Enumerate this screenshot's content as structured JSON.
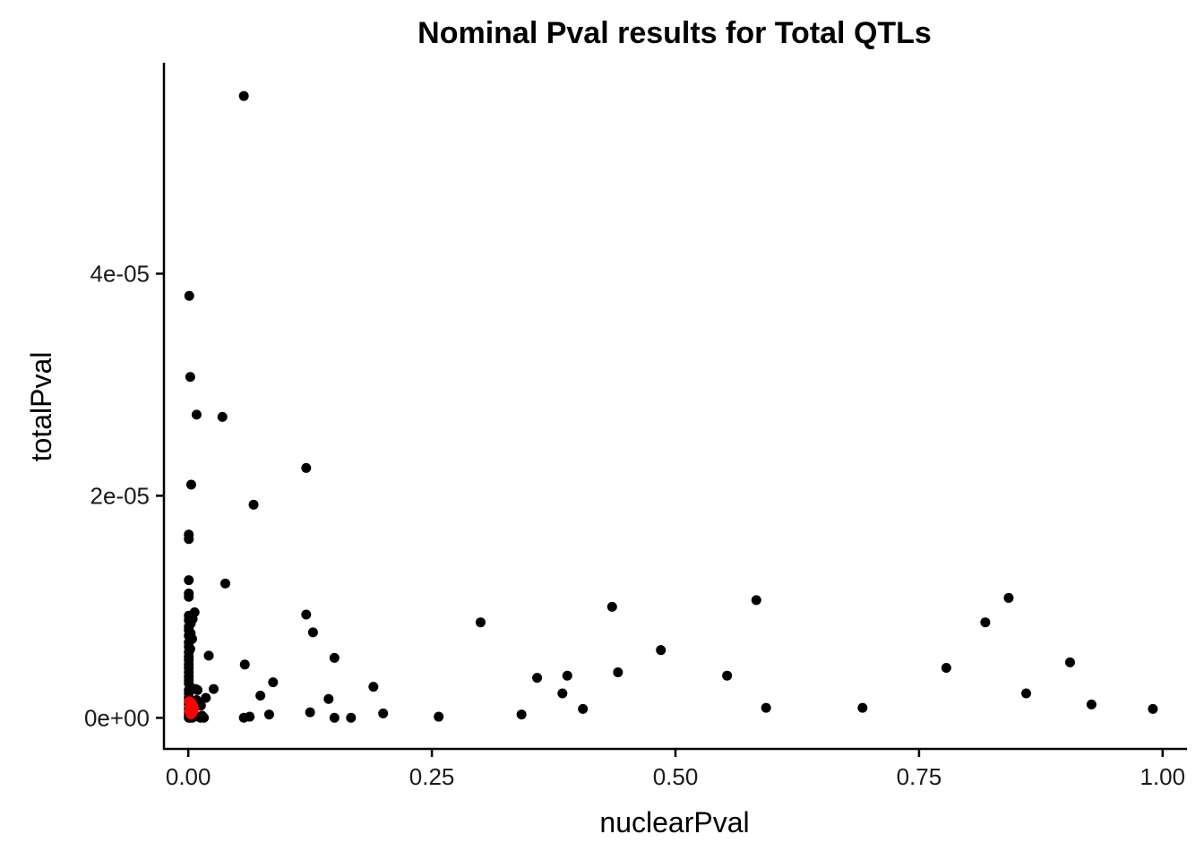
{
  "chart_data": {
    "type": "scatter",
    "title": "Nominal Pval results for Total QTLs",
    "xlabel": "nuclearPval",
    "ylabel": "totalPval",
    "xlim": [
      -0.025,
      1.025
    ],
    "ylim": [
      -2.8e-06,
      5.9e-05
    ],
    "x_ticks": [
      0,
      0.25,
      0.5,
      0.75,
      1
    ],
    "x_tick_labels": [
      "0.00",
      "0.25",
      "0.50",
      "0.75",
      "1.00"
    ],
    "y_ticks": [
      0,
      2e-05,
      4e-05
    ],
    "y_tick_labels": [
      "0e+00",
      "2e-05",
      "4e-05"
    ],
    "grid": false,
    "legend": "none",
    "series": [
      {
        "color": "#000000",
        "points": [
          [
            0.057,
            5.6e-05
          ],
          [
            0.001,
            3.8e-05
          ],
          [
            0.002,
            3.07e-05
          ],
          [
            0.0085,
            2.73e-05
          ],
          [
            0.035,
            2.71e-05
          ],
          [
            0.003,
            2.1e-05
          ],
          [
            0.067,
            1.92e-05
          ],
          [
            0.121,
            2.25e-05
          ],
          [
            0.0005,
            1.65e-05
          ],
          [
            0.0005,
            1.61e-05
          ],
          [
            0.0005,
            1.24e-05
          ],
          [
            0.038,
            1.21e-05
          ],
          [
            0.0005,
            1.12e-05
          ],
          [
            0.0005,
            1.09e-05
          ],
          [
            0.0065,
            9.5e-06
          ],
          [
            0.0005,
            9.2e-06
          ],
          [
            0.0045,
            8.9e-06
          ],
          [
            0.0005,
            8.8e-06
          ],
          [
            0.0025,
            8.5e-06
          ],
          [
            0.0005,
            8.2e-06
          ],
          [
            0.0005,
            7.9e-06
          ],
          [
            0.0025,
            7.6e-06
          ],
          [
            0.0005,
            7.4e-06
          ],
          [
            0.004,
            7.1e-06
          ],
          [
            0.0005,
            6.8e-06
          ],
          [
            0.0005,
            6.4e-06
          ],
          [
            0.002,
            6.2e-06
          ],
          [
            0.0005,
            5.9e-06
          ],
          [
            0.0005,
            5.5e-06
          ],
          [
            0.0005,
            5.2e-06
          ],
          [
            0.0005,
            4.8e-06
          ],
          [
            0.0005,
            4.5e-06
          ],
          [
            0.0005,
            4.1e-06
          ],
          [
            0.0005,
            3.7e-06
          ],
          [
            0.0005,
            3.4e-06
          ],
          [
            0.0005,
            3.1e-06
          ],
          [
            0.002,
            2.8e-06
          ],
          [
            0.0005,
            2.5e-06
          ],
          [
            0.0005,
            2.2e-06
          ],
          [
            0.0005,
            1.8e-06
          ],
          [
            0.0005,
            1.5e-06
          ],
          [
            0.0005,
            1.2e-06
          ],
          [
            0.0005,
            8e-07
          ],
          [
            0.0005,
            5e-07
          ],
          [
            0.0005,
            2e-07
          ],
          [
            0.0005,
            0.0
          ],
          [
            0.002,
            0.0
          ],
          [
            0.004,
            0.0
          ],
          [
            0.006,
            1e-07
          ],
          [
            0.0045,
            3e-07
          ],
          [
            0.0075,
            2.6e-06
          ],
          [
            0.0095,
            2.5e-06
          ],
          [
            0.0085,
            1.6e-06
          ],
          [
            0.011,
            1.3e-06
          ],
          [
            0.013,
            1.1e-06
          ],
          [
            0.014,
            2e-07
          ],
          [
            0.0125,
            0.0
          ],
          [
            0.016,
            0.0
          ],
          [
            0.018,
            1.8e-06
          ],
          [
            0.021,
            5.6e-06
          ],
          [
            0.026,
            2.6e-06
          ],
          [
            0.058,
            4.8e-06
          ],
          [
            0.057,
            0.0
          ],
          [
            0.063,
            1e-07
          ],
          [
            0.074,
            2e-06
          ],
          [
            0.083,
            3e-07
          ],
          [
            0.087,
            3.2e-06
          ],
          [
            0.121,
            9.3e-06
          ],
          [
            0.128,
            7.7e-06
          ],
          [
            0.125,
            5e-07
          ],
          [
            0.144,
            1.7e-06
          ],
          [
            0.15,
            5.4e-06
          ],
          [
            0.15,
            0.0
          ],
          [
            0.167,
            0.0
          ],
          [
            0.19,
            2.8e-06
          ],
          [
            0.2,
            4e-07
          ],
          [
            0.257,
            1e-07
          ],
          [
            0.3,
            8.6e-06
          ],
          [
            0.342,
            3e-07
          ],
          [
            0.358,
            3.6e-06
          ],
          [
            0.384,
            2.2e-06
          ],
          [
            0.389,
            3.8e-06
          ],
          [
            0.405,
            8e-07
          ],
          [
            0.435,
            1e-05
          ],
          [
            0.441,
            4.1e-06
          ],
          [
            0.485,
            6.1e-06
          ],
          [
            0.553,
            3.8e-06
          ],
          [
            0.583,
            1.06e-05
          ],
          [
            0.593,
            9e-07
          ],
          [
            0.692,
            9e-07
          ],
          [
            0.778,
            4.5e-06
          ],
          [
            0.818,
            8.6e-06
          ],
          [
            0.842,
            1.08e-05
          ],
          [
            0.86,
            2.2e-06
          ],
          [
            0.905,
            5e-06
          ],
          [
            0.927,
            1.2e-06
          ],
          [
            0.99,
            8e-07
          ]
        ]
      },
      {
        "color": "#ff0000",
        "points": [
          [
            0.001,
            1.5e-06
          ],
          [
            0.002,
            1.2e-06
          ],
          [
            0.003,
            1.4e-06
          ],
          [
            0.004,
            9e-07
          ],
          [
            0.005,
            1.1e-06
          ],
          [
            0.002,
            7e-07
          ],
          [
            0.003,
            5e-07
          ],
          [
            0.004,
            4e-07
          ],
          [
            0.006,
            8e-07
          ],
          [
            0.001,
            6e-07
          ],
          [
            0.0025,
            3e-07
          ],
          [
            0.005,
            6e-07
          ],
          [
            0.0035,
            1e-06
          ],
          [
            0.0015,
            1e-06
          ]
        ]
      }
    ]
  }
}
